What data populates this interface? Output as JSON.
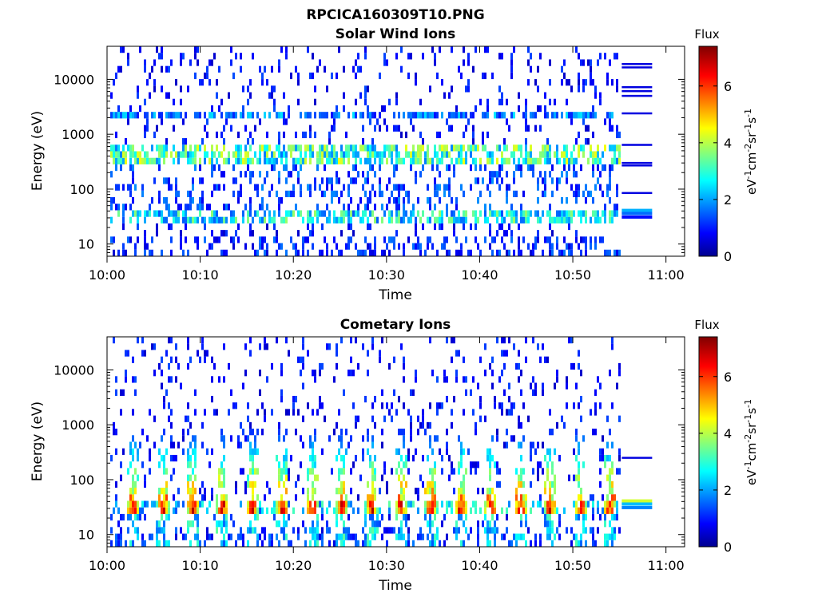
{
  "figure": {
    "title": "RPCICA160309T10.PNG"
  },
  "chart_data": [
    {
      "type": "heatmap",
      "title": "Solar Wind Ions",
      "xlabel": "Time",
      "ylabel": "Energy (eV)",
      "x_ticks": [
        "10:00",
        "10:10",
        "10:20",
        "10:30",
        "10:40",
        "10:50",
        "11:00"
      ],
      "xlim": [
        "10:00",
        "11:02"
      ],
      "y_scale": "log",
      "y_ticks": [
        10,
        100,
        1000,
        10000
      ],
      "y_tick_labels": [
        "10",
        "100",
        "1000",
        "10000"
      ],
      "ylim": [
        6,
        40000
      ],
      "data_end_time": "10:55",
      "colorbar": {
        "title": "Flux",
        "label": "eV-1cm-2sr-1s-1",
        "label_parts": [
          {
            "t": "eV"
          },
          {
            "t": "-1",
            "sup": true
          },
          {
            "t": "cm"
          },
          {
            "t": "-2",
            "sup": true
          },
          {
            "t": "sr"
          },
          {
            "t": "-1",
            "sup": true
          },
          {
            "t": "s"
          },
          {
            "t": "-1",
            "sup": true
          }
        ],
        "range": [
          0,
          7.4
        ],
        "ticks": [
          0,
          2,
          4,
          6
        ],
        "colormap": "jet"
      },
      "bands": [
        {
          "energy_range": [
            27,
            44
          ],
          "typical_flux": 3.0,
          "description": "persistent low-energy band"
        },
        {
          "energy_range": [
            300,
            650
          ],
          "typical_flux": 3.5,
          "description": "solar wind band"
        },
        {
          "energy_range": [
            1700,
            2300
          ],
          "typical_flux": 2.0
        }
      ],
      "background_sparse_flux": 1.0,
      "trailing_lines": [
        {
          "energy": 19000,
          "flux": 0.7
        },
        {
          "energy": 16500,
          "flux": 0.7
        },
        {
          "energy": 7200,
          "flux": 0.7
        },
        {
          "energy": 6100,
          "flux": 0.7
        },
        {
          "energy": 5000,
          "flux": 0.7
        },
        {
          "energy": 2400,
          "flux": 0.7
        },
        {
          "energy": 640,
          "flux": 0.7
        },
        {
          "energy": 300,
          "flux": 0.7
        },
        {
          "energy": 270,
          "flux": 0.7
        },
        {
          "energy": 85,
          "flux": 0.7
        },
        {
          "energy": 41,
          "flux": 2.2
        },
        {
          "energy": 36,
          "flux": 1.7
        },
        {
          "energy": 31,
          "flux": 1.0
        }
      ]
    },
    {
      "type": "heatmap",
      "title": "Cometary Ions",
      "xlabel": "Time",
      "ylabel": "Energy (eV)",
      "x_ticks": [
        "10:00",
        "10:10",
        "10:20",
        "10:30",
        "10:40",
        "10:50",
        "11:00"
      ],
      "xlim": [
        "10:00",
        "11:02"
      ],
      "y_scale": "log",
      "y_ticks": [
        10,
        100,
        1000,
        10000
      ],
      "y_tick_labels": [
        "10",
        "100",
        "1000",
        "10000"
      ],
      "ylim": [
        6,
        40000
      ],
      "data_end_time": "10:55",
      "colorbar": {
        "title": "Flux",
        "label": "eV-1cm-2sr-1s-1",
        "label_parts": [
          {
            "t": "eV"
          },
          {
            "t": "-1",
            "sup": true
          },
          {
            "t": "cm"
          },
          {
            "t": "-2",
            "sup": true
          },
          {
            "t": "sr"
          },
          {
            "t": "-1",
            "sup": true
          },
          {
            "t": "s"
          },
          {
            "t": "-1",
            "sup": true
          }
        ],
        "range": [
          0,
          7.4
        ],
        "ticks": [
          0,
          2,
          4,
          6
        ],
        "colormap": "jet"
      },
      "bursts": {
        "period_minutes": 3.2,
        "first_time": "10:02",
        "peak_energy_range": [
          27,
          44
        ],
        "peak_flux": 6.0,
        "tail_to_energy": 800,
        "description": "periodic cometary ion bursts"
      },
      "background_sparse_flux": 1.0,
      "trailing_lines": [
        {
          "energy": 250,
          "flux": 0.7
        },
        {
          "energy": 41,
          "flux": 4.3
        },
        {
          "energy": 36,
          "flux": 2.3
        },
        {
          "energy": 31,
          "flux": 1.9
        }
      ]
    }
  ]
}
